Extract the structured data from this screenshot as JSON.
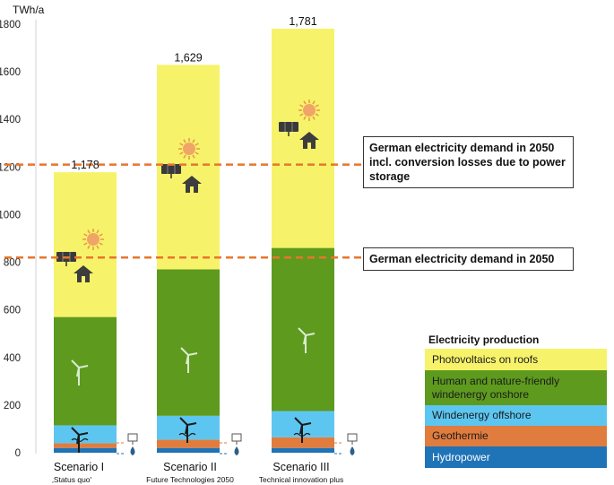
{
  "chart_data": {
    "type": "bar",
    "stacked": true,
    "ylabel": "TWh/a",
    "ylim": [
      0,
      1800
    ],
    "yticks": [
      0,
      200,
      400,
      600,
      800,
      1000,
      1200,
      1400,
      1600,
      1800
    ],
    "grid": false,
    "categories": [
      "Scenario I",
      "Scenario II",
      "Scenario III"
    ],
    "category_subtitles": [
      "‚Status quo'",
      "Future Technologies 2050",
      "Technical innovation plus"
    ],
    "totals": [
      "1,178",
      "1,629",
      "1,781"
    ],
    "total_values": [
      1178,
      1629,
      1781
    ],
    "series": [
      {
        "name": "Hydropower",
        "color": "#1f73b7",
        "values": [
          20,
          20,
          20
        ]
      },
      {
        "name": "Geothermie",
        "color": "#e07c3e",
        "values": [
          20,
          35,
          45
        ]
      },
      {
        "name": "Windenergy offshore",
        "color": "#5dc6f0",
        "values": [
          75,
          100,
          110
        ]
      },
      {
        "name": "Human and nature-friendly windenergy onshore",
        "color": "#5e9a1e",
        "values": [
          455,
          615,
          685
        ]
      },
      {
        "name": "Photovoltaics on roofs",
        "color": "#f6f36a",
        "values": [
          608,
          859,
          921
        ]
      }
    ],
    "reference_lines": [
      {
        "value": 1210,
        "label": "German electricity demand in 2050 incl. conversion losses due to power storage",
        "color": "#e8762c"
      },
      {
        "value": 820,
        "label": "German electricity demand in 2050",
        "color": "#e8762c"
      }
    ],
    "legend_title": "Electricity production",
    "legend_items": [
      {
        "label": "Photovoltaics on roofs",
        "color": "#f6f36a"
      },
      {
        "label": "Human and nature-friendly windenergy onshore",
        "color": "#5e9a1e"
      },
      {
        "label": "Windenergy offshore",
        "color": "#5dc6f0"
      },
      {
        "label": "Geothermie",
        "color": "#e07c3e"
      },
      {
        "label": "Hydropower",
        "color": "#1f73b7"
      }
    ],
    "legend_position": "bottom-right"
  }
}
